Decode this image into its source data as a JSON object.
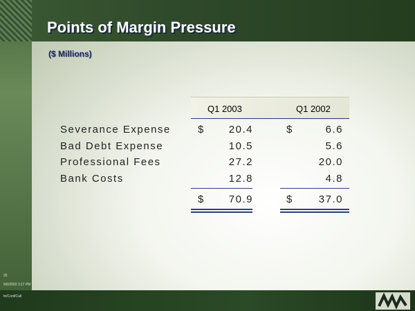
{
  "header": {
    "title": "Points of Margin Pressure",
    "subtitle": "($ Millions)"
  },
  "table": {
    "columns": [
      "Q1 2003",
      "Q1 2002"
    ],
    "currency": "$",
    "rows": [
      {
        "label": "Severance Expense",
        "values": [
          "20.4",
          "6.6"
        ]
      },
      {
        "label": "Bad Debt Expense",
        "values": [
          "10.5",
          "5.6"
        ]
      },
      {
        "label": "Professional Fees",
        "values": [
          "27.2",
          "20.0"
        ]
      },
      {
        "label": "Bank Costs",
        "values": [
          "12.8",
          "4.8"
        ]
      }
    ],
    "total": [
      "70.9",
      "37.0"
    ]
  },
  "footer": {
    "page": "25",
    "date": "5/6/2003 3:17 PM",
    "file": "fo/Conf/Call"
  }
}
